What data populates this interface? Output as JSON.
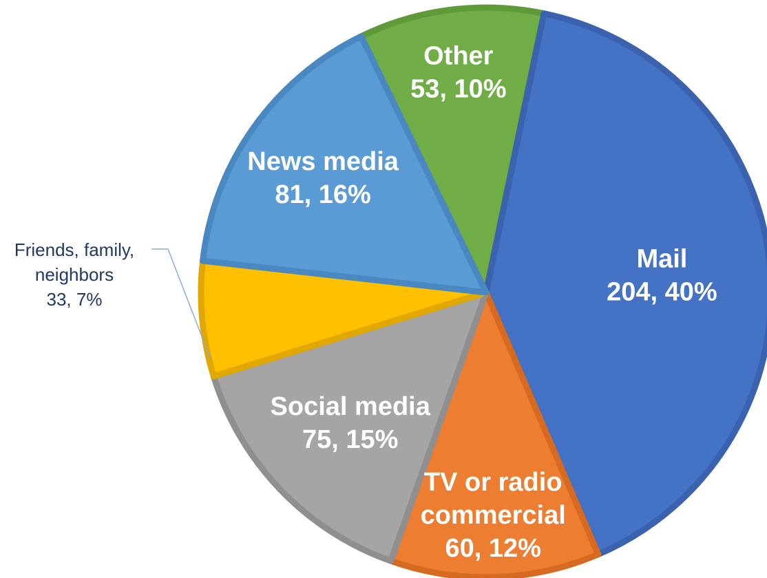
{
  "chart_data": {
    "type": "pie",
    "title": "",
    "start_angle_deg": -26,
    "direction": "clockwise",
    "slices": [
      {
        "label": "Other",
        "value": 53,
        "percent": "10%",
        "color": "#70AD47",
        "border": "#5E9A38"
      },
      {
        "label": "Mail",
        "value": 204,
        "percent": "40%",
        "color": "#4472C4",
        "border": "#3A62AE"
      },
      {
        "label": "TV or radio commercial",
        "label_lines": [
          "TV or radio",
          "commercial"
        ],
        "value": 60,
        "percent": "12%",
        "color": "#ED7D31",
        "border": "#D66A20"
      },
      {
        "label": "Social media",
        "value": 75,
        "percent": "15%",
        "color": "#A5A5A5",
        "border": "#8F8F8F"
      },
      {
        "label": "Friends, family, neighbors",
        "label_lines": [
          "Friends, family,",
          "neighbors"
        ],
        "value": 33,
        "percent": "7%",
        "color": "#FFC000",
        "border": "#E0A800",
        "label_outside": true
      },
      {
        "label": "News media",
        "value": 81,
        "percent": "16%",
        "color": "#5B9BD5",
        "border": "#4A88C2"
      }
    ]
  }
}
